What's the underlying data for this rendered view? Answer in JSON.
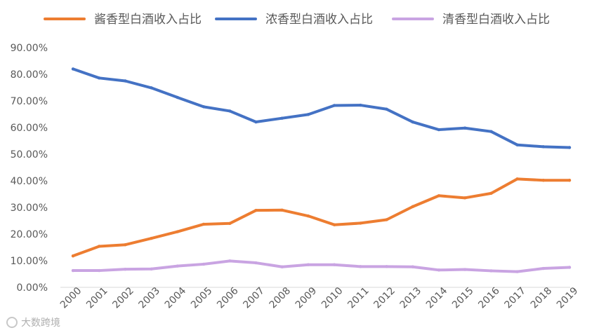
{
  "chart_data": {
    "type": "line",
    "title": "",
    "xlabel": "",
    "ylabel": "",
    "ylim": [
      0,
      90
    ],
    "ytick_values": [
      0,
      10,
      20,
      30,
      40,
      50,
      60,
      70,
      80,
      90
    ],
    "ytick_labels": [
      "0.00%",
      "10.00%",
      "20.00%",
      "30.00%",
      "40.00%",
      "50.00%",
      "60.00%",
      "70.00%",
      "80.00%",
      "90.00%"
    ],
    "categories": [
      "2000",
      "2001",
      "2002",
      "2003",
      "2004",
      "2005",
      "2006",
      "2007",
      "2008",
      "2009",
      "2010",
      "2011",
      "2012",
      "2013",
      "2014",
      "2015",
      "2016",
      "2017",
      "2018",
      "2019"
    ],
    "legend_position": "top",
    "series": [
      {
        "name": "酱香型白酒收入占比",
        "color": "#ED7D31",
        "values": [
          11.8,
          15.4,
          16.0,
          18.4,
          20.9,
          23.7,
          24.0,
          28.9,
          29.0,
          26.8,
          23.5,
          24.1,
          25.4,
          30.3,
          34.4,
          33.6,
          35.3,
          40.7,
          40.2,
          40.2
        ]
      },
      {
        "name": "浓香型白酒收入占比",
        "color": "#4472C4",
        "values": [
          82.0,
          78.6,
          77.5,
          74.9,
          71.3,
          67.8,
          66.2,
          62.1,
          63.5,
          64.9,
          68.3,
          68.4,
          66.9,
          62.1,
          59.2,
          59.8,
          58.5,
          53.5,
          52.8,
          52.5
        ]
      },
      {
        "name": "清香型白酒收入占比",
        "color": "#C9A4E2",
        "values": [
          6.3,
          6.3,
          6.8,
          6.9,
          8.0,
          8.7,
          9.9,
          9.2,
          7.7,
          8.5,
          8.5,
          7.8,
          7.8,
          7.7,
          6.5,
          6.7,
          6.2,
          5.9,
          7.1,
          7.5
        ]
      }
    ]
  },
  "watermark": {
    "text": "大数跨境"
  }
}
